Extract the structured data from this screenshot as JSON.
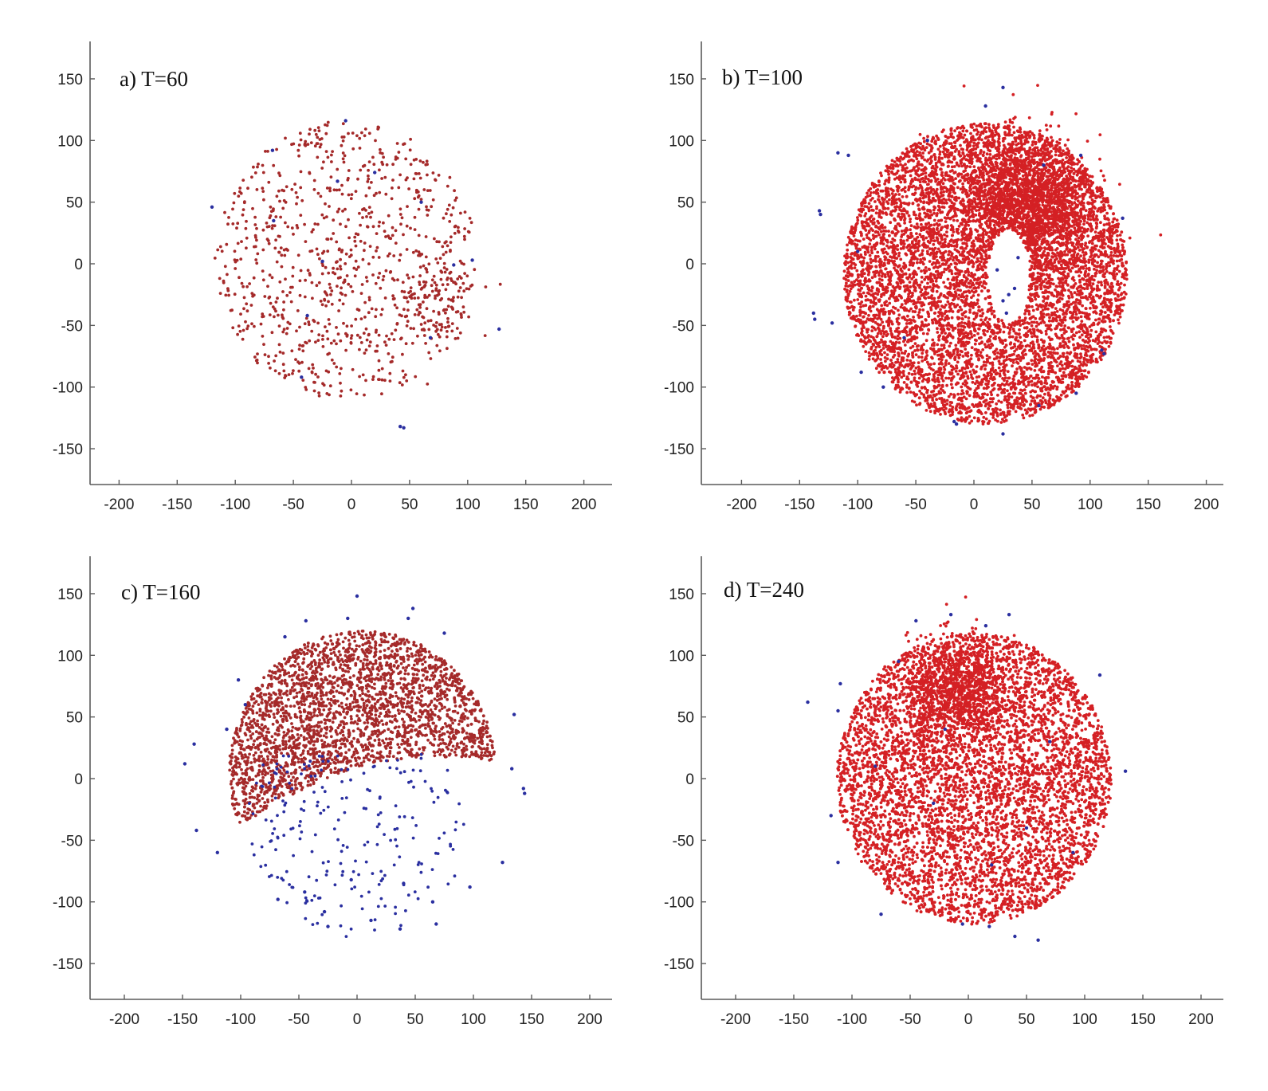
{
  "figure": {
    "colors": {
      "red": "#d42024",
      "darkred": "#a52a2a",
      "blue": "#2a2fa0"
    }
  },
  "chart_data": [
    {
      "type": "scatter",
      "title": "a) T=60",
      "xlim": [
        -225,
        225
      ],
      "ylim": [
        -178,
        178
      ],
      "xticks": [
        -200,
        -150,
        -100,
        -50,
        0,
        50,
        100,
        150,
        200
      ],
      "yticks": [
        -150,
        -100,
        -50,
        0,
        50,
        100,
        150
      ],
      "grid": false,
      "series": [
        {
          "color": "#a52a2a",
          "approx_count": 900,
          "distribution": "disk",
          "center": [
            -5,
            3
          ],
          "radius": 113,
          "clusters": [
            {
              "center": [
                75,
                -30
              ],
              "radius": 28,
              "count": 90
            }
          ]
        },
        {
          "color": "#2a2fa0",
          "points": [
            [
              -120,
              46
            ],
            [
              -68,
              92
            ],
            [
              -12,
              67
            ],
            [
              -5,
              116
            ],
            [
              20,
              74
            ],
            [
              60,
              50
            ],
            [
              104,
              3
            ],
            [
              127,
              -53
            ],
            [
              42,
              -132
            ],
            [
              45,
              -133
            ],
            [
              -38,
              -42
            ],
            [
              -25,
              2
            ],
            [
              88,
              -1
            ],
            [
              -67,
              35
            ],
            [
              68,
              -60
            ],
            [
              -43,
              -92
            ]
          ]
        }
      ]
    },
    {
      "type": "scatter",
      "title": "b) T=100",
      "xlim": [
        -225,
        225
      ],
      "ylim": [
        -178,
        178
      ],
      "xticks": [
        -200,
        -150,
        -100,
        -50,
        0,
        50,
        100,
        150,
        200
      ],
      "yticks": [
        -150,
        -100,
        -50,
        0,
        50,
        100,
        150
      ],
      "grid": false,
      "series": [
        {
          "color": "#d42024",
          "approx_count": 7000,
          "distribution": "disk",
          "center": [
            10,
            -8
          ],
          "radius": 122,
          "clusters": [
            {
              "center": [
                45,
                48
              ],
              "radius": 45,
              "count": 1800
            }
          ],
          "hole": {
            "center": [
              30,
              -10
            ],
            "rx": 18,
            "ry": 38
          }
        },
        {
          "color": "#2a2fa0",
          "points": [
            [
              -133,
              43
            ],
            [
              -132,
              40
            ],
            [
              -117,
              90
            ],
            [
              -108,
              88
            ],
            [
              -138,
              -40
            ],
            [
              -137,
              -45
            ],
            [
              -122,
              -48
            ],
            [
              -97,
              -88
            ],
            [
              -78,
              -100
            ],
            [
              -15,
              -130
            ],
            [
              -17,
              -128
            ],
            [
              25,
              -138
            ],
            [
              56,
              -115
            ],
            [
              88,
              -105
            ],
            [
              92,
              88
            ],
            [
              112,
              -73
            ],
            [
              110,
              -70
            ],
            [
              128,
              37
            ],
            [
              10,
              128
            ],
            [
              25,
              143
            ],
            [
              30,
              -25
            ],
            [
              25,
              -30
            ],
            [
              35,
              -20
            ],
            [
              20,
              -5
            ],
            [
              38,
              5
            ],
            [
              28,
              -40
            ],
            [
              -100,
              10
            ],
            [
              -60,
              -60
            ],
            [
              60,
              80
            ],
            [
              -40,
              100
            ]
          ]
        }
      ]
    },
    {
      "type": "scatter",
      "title": "c) T=160",
      "xlim": [
        -225,
        225
      ],
      "ylim": [
        -178,
        178
      ],
      "xticks": [
        -200,
        -150,
        -100,
        -50,
        0,
        50,
        100,
        150,
        200
      ],
      "yticks": [
        -150,
        -100,
        -50,
        0,
        50,
        100,
        150
      ],
      "grid": false,
      "series": [
        {
          "color": "#a52a2a",
          "approx_count": 3000,
          "distribution": "upper-arc",
          "center": [
            5,
            5
          ],
          "radius": 115
        },
        {
          "color": "#2a2fa0",
          "points": [
            [
              -148,
              12
            ],
            [
              -140,
              28
            ],
            [
              -138,
              -42
            ],
            [
              -120,
              -60
            ],
            [
              -102,
              80
            ],
            [
              -96,
              60
            ],
            [
              -112,
              40
            ],
            [
              0,
              148
            ],
            [
              -8,
              130
            ],
            [
              -44,
              128
            ],
            [
              -62,
              115
            ],
            [
              48,
              138
            ],
            [
              44,
              130
            ],
            [
              75,
              118
            ],
            [
              135,
              52
            ],
            [
              133,
              8
            ],
            [
              143,
              -8
            ],
            [
              144,
              -12
            ],
            [
              125,
              -68
            ],
            [
              97,
              -88
            ],
            [
              65,
              -100
            ],
            [
              68,
              -118
            ],
            [
              37,
              -122
            ],
            [
              12,
              -115
            ],
            [
              -25,
              -120
            ],
            [
              -28,
              -108
            ],
            [
              -68,
              -98
            ],
            [
              -45,
              -92
            ],
            [
              -5,
              -82
            ],
            [
              40,
              -85
            ]
          ],
          "approx_count": 220,
          "distribution": "lower-disk",
          "center": [
            0,
            -35
          ],
          "radius": 95
        }
      ]
    },
    {
      "type": "scatter",
      "title": "d) T=240",
      "xlim": [
        -225,
        225
      ],
      "ylim": [
        -178,
        178
      ],
      "xticks": [
        -200,
        -150,
        -100,
        -50,
        0,
        50,
        100,
        150,
        200
      ],
      "yticks": [
        -150,
        -100,
        -50,
        0,
        50,
        100,
        150
      ],
      "grid": false,
      "series": [
        {
          "color": "#d42024",
          "approx_count": 7500,
          "distribution": "disk",
          "center": [
            5,
            0
          ],
          "radius": 118,
          "clusters": [
            {
              "center": [
                -10,
                72
              ],
              "radius": 35,
              "count": 900
            }
          ]
        },
        {
          "color": "#2a2fa0",
          "points": [
            [
              -138,
              62
            ],
            [
              -110,
              77
            ],
            [
              -112,
              55
            ],
            [
              -118,
              -30
            ],
            [
              -112,
              -68
            ],
            [
              -75,
              -110
            ],
            [
              -45,
              128
            ],
            [
              -15,
              133
            ],
            [
              15,
              124
            ],
            [
              35,
              133
            ],
            [
              113,
              84
            ],
            [
              135,
              6
            ],
            [
              40,
              -128
            ],
            [
              60,
              -131
            ],
            [
              18,
              -120
            ],
            [
              -5,
              -118
            ],
            [
              -60,
              95
            ],
            [
              70,
              30
            ],
            [
              -30,
              -20
            ],
            [
              20,
              -70
            ],
            [
              50,
              -40
            ],
            [
              -80,
              10
            ],
            [
              90,
              -60
            ],
            [
              -20,
              40
            ]
          ]
        }
      ]
    }
  ]
}
